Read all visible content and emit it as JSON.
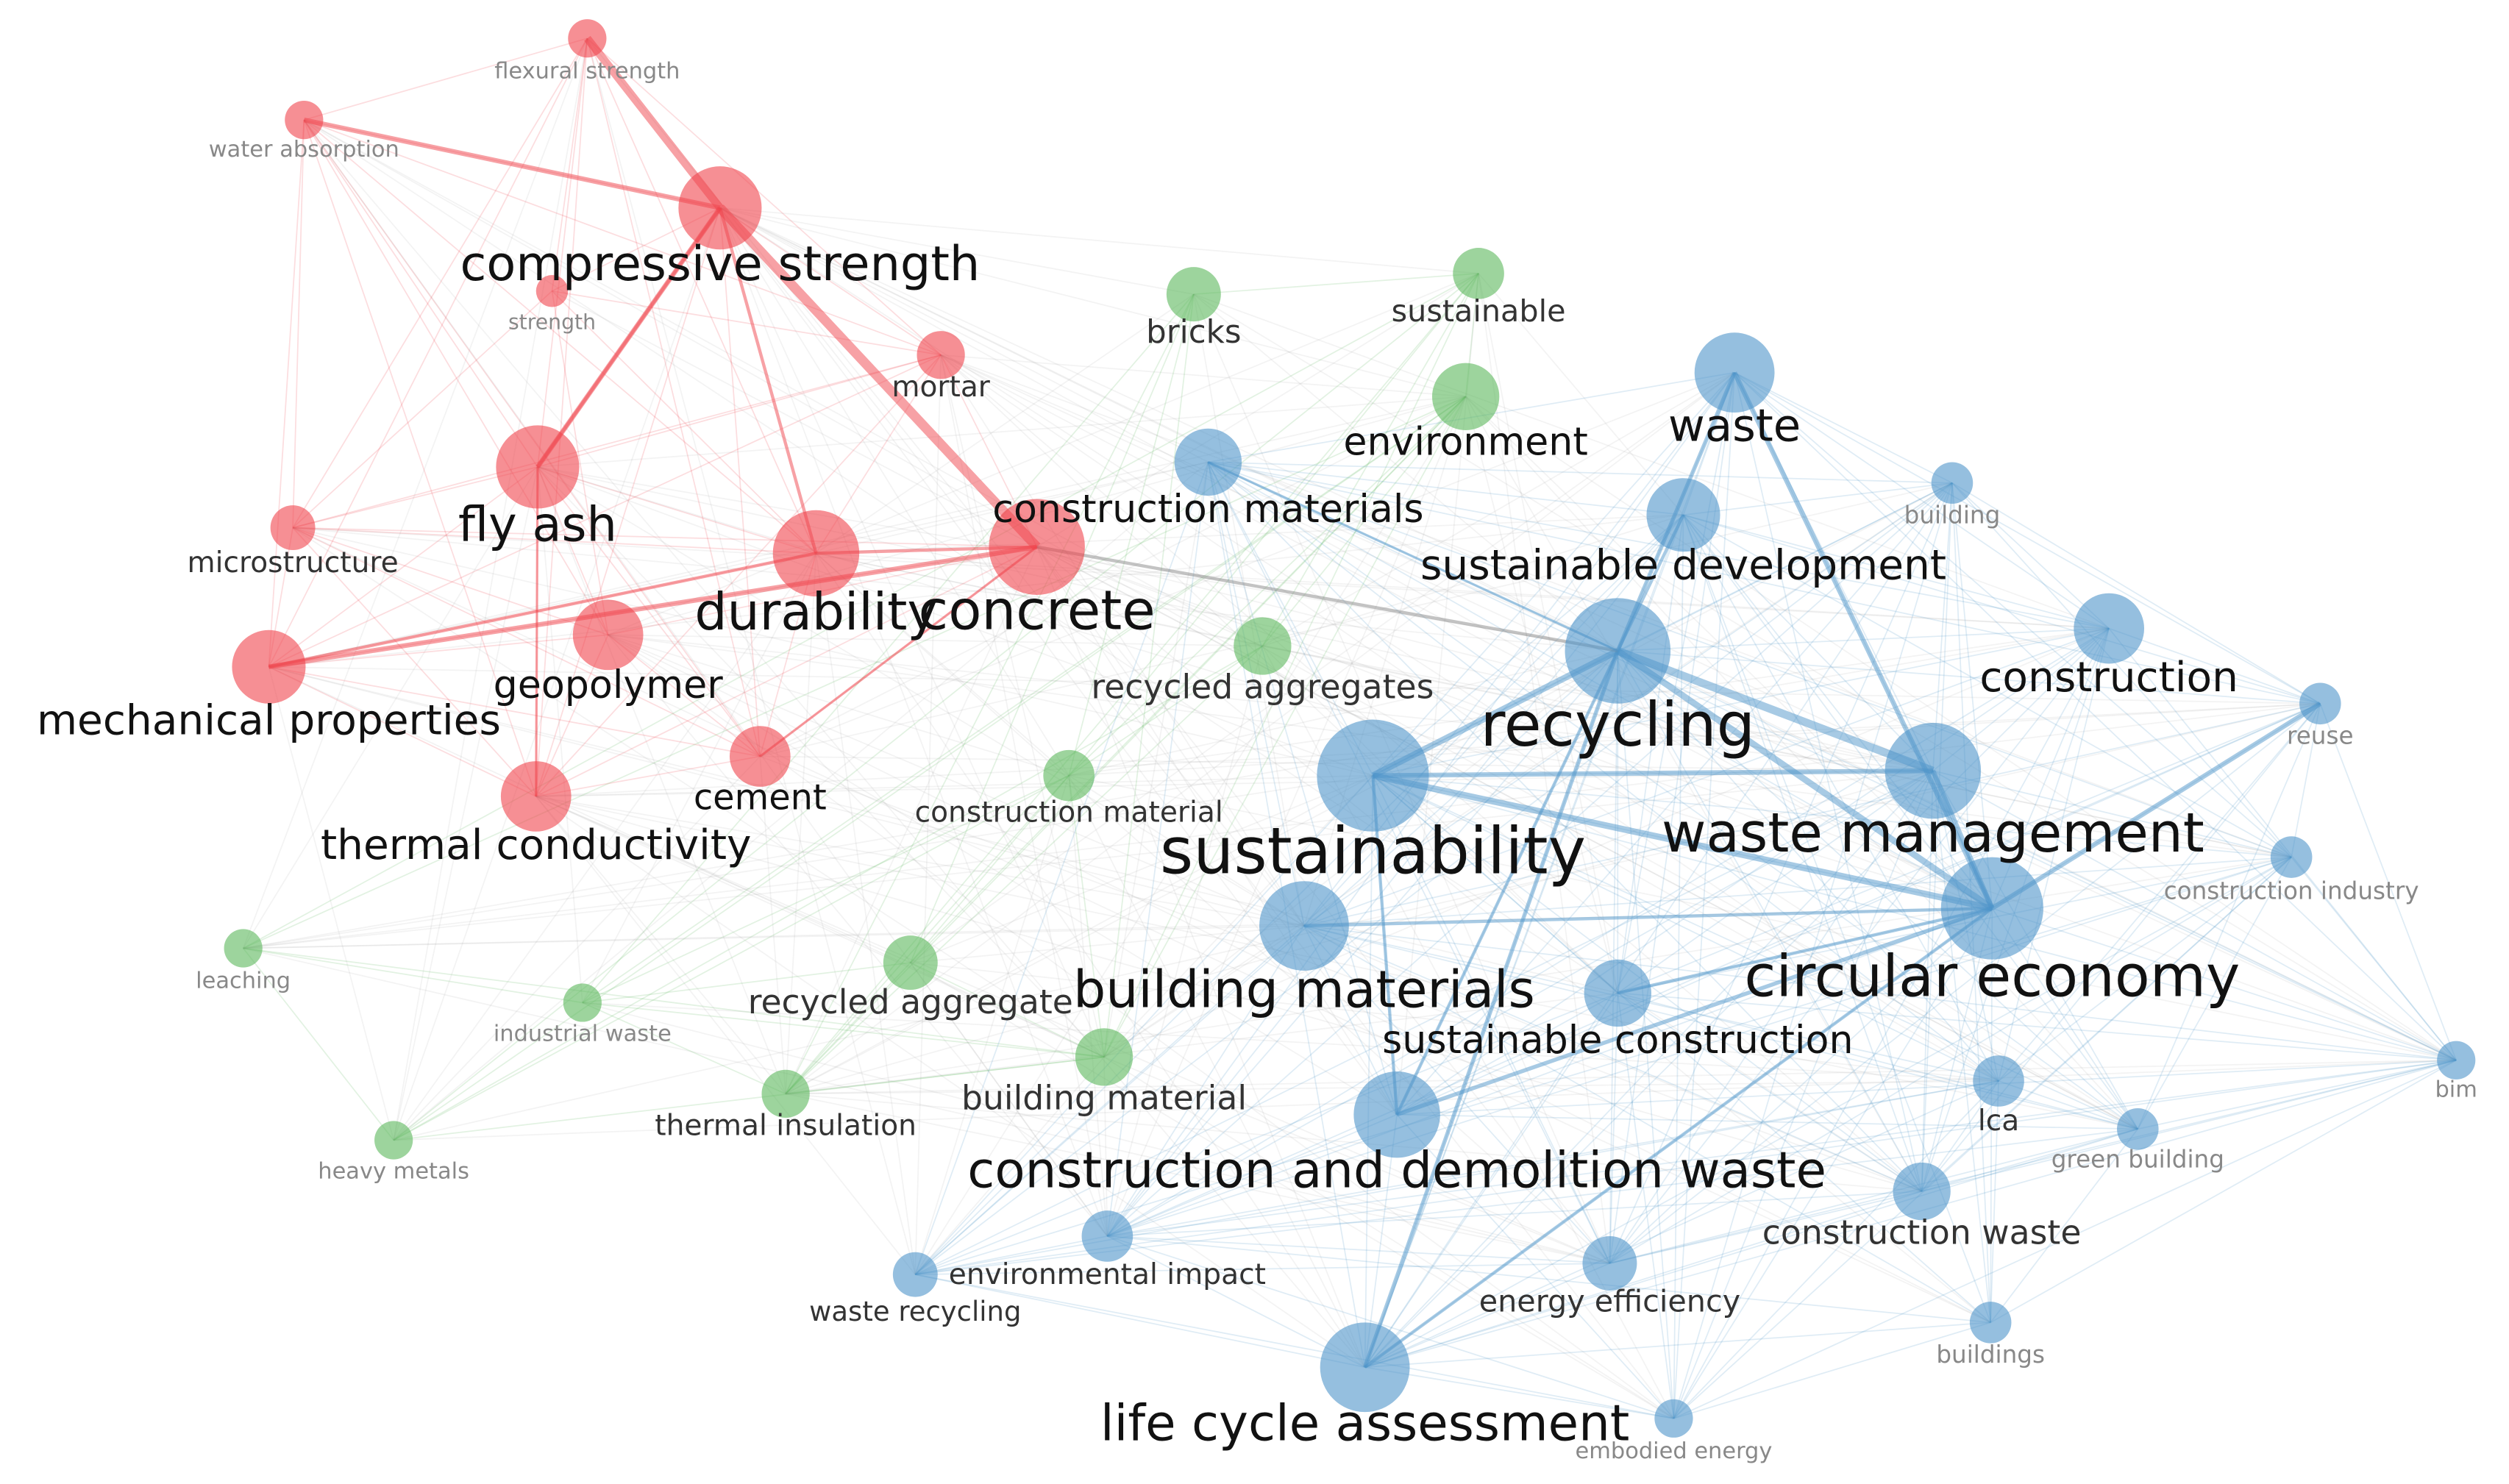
{
  "nodes": [
    {
      "label": "flexural strength",
      "color": "#f0444c"
    },
    {
      "label": "water absorption",
      "color": "#f0444c"
    },
    {
      "label": "compressive strength",
      "color": "#f0444c"
    },
    {
      "label": "strength",
      "color": "#f0444c"
    },
    {
      "label": "mortar",
      "color": "#f0444c"
    },
    {
      "label": "fly ash",
      "color": "#f0444c"
    },
    {
      "label": "microstructure",
      "color": "#f0444c"
    },
    {
      "label": "durability",
      "color": "#f0444c"
    },
    {
      "label": "concrete",
      "color": "#f0444c"
    },
    {
      "label": "geopolymer",
      "color": "#f0444c"
    },
    {
      "label": "mechanical properties",
      "color": "#f0444c"
    },
    {
      "label": "cement",
      "color": "#f0444c"
    },
    {
      "label": "thermal conductivity",
      "color": "#f0444c"
    },
    {
      "label": "bricks",
      "color": "#5cb85c"
    },
    {
      "label": "sustainable",
      "color": "#5cb85c"
    },
    {
      "label": "environment",
      "color": "#5cb85c"
    },
    {
      "label": "recycled aggregates",
      "color": "#5cb85c"
    },
    {
      "label": "construction material",
      "color": "#5cb85c"
    },
    {
      "label": "leaching",
      "color": "#5cb85c"
    },
    {
      "label": "industrial waste",
      "color": "#5cb85c"
    },
    {
      "label": "recycled aggregate",
      "color": "#5cb85c"
    },
    {
      "label": "building material",
      "color": "#5cb85c"
    },
    {
      "label": "thermal insulation",
      "color": "#5cb85c"
    },
    {
      "label": "heavy metals",
      "color": "#5cb85c"
    },
    {
      "label": "waste",
      "color": "#4f95c9"
    },
    {
      "label": "building",
      "color": "#4f95c9"
    },
    {
      "label": "construction materials",
      "color": "#4f95c9"
    },
    {
      "label": "sustainable development",
      "color": "#4f95c9"
    },
    {
      "label": "recycling",
      "color": "#4f95c9"
    },
    {
      "label": "construction",
      "color": "#4f95c9"
    },
    {
      "label": "reuse",
      "color": "#4f95c9"
    },
    {
      "label": "sustainability",
      "color": "#4f95c9"
    },
    {
      "label": "waste management",
      "color": "#4f95c9"
    },
    {
      "label": "construction industry",
      "color": "#4f95c9"
    },
    {
      "label": "circular economy",
      "color": "#4f95c9"
    },
    {
      "label": "building materials",
      "color": "#4f95c9"
    },
    {
      "label": "sustainable construction",
      "color": "#4f95c9"
    },
    {
      "label": "lca",
      "color": "#4f95c9"
    },
    {
      "label": "bim",
      "color": "#4f95c9"
    },
    {
      "label": "green building",
      "color": "#4f95c9"
    },
    {
      "label": "construction and demolition waste",
      "color": "#4f95c9"
    },
    {
      "label": "construction waste",
      "color": "#4f95c9"
    },
    {
      "label": "environmental impact",
      "color": "#4f95c9"
    },
    {
      "label": "waste recycling",
      "color": "#4f95c9"
    },
    {
      "label": "energy efficiency",
      "color": "#4f95c9"
    },
    {
      "label": "buildings",
      "color": "#4f95c9"
    },
    {
      "label": "life cycle assessment",
      "color": "#4f95c9"
    },
    {
      "label": "embodied energy",
      "color": "#4f95c9"
    }
  ]
}
